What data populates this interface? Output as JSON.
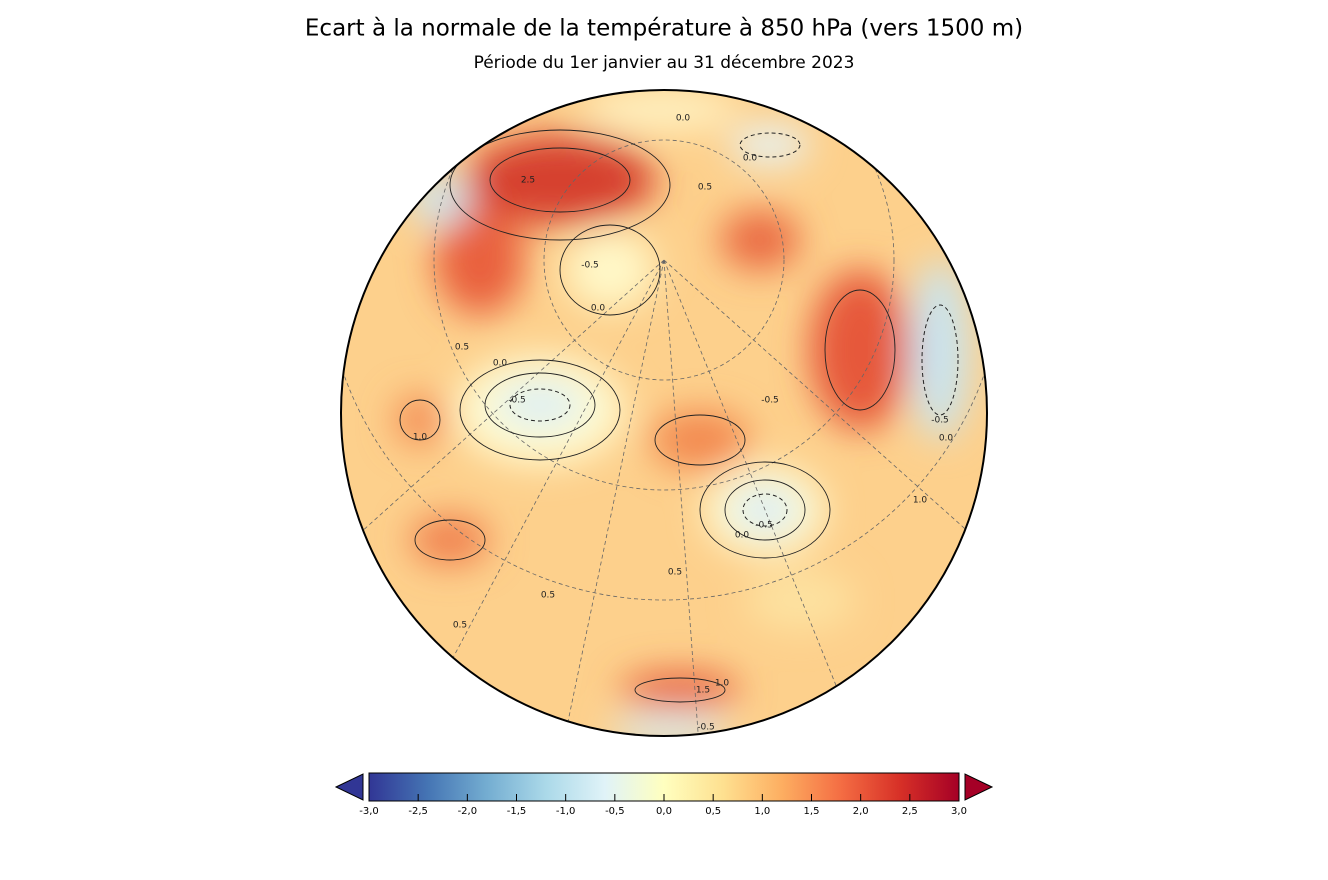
{
  "title": "Ecart à la normale de la température à 850 hPa (vers 1500 m)",
  "subtitle": "Période du 1er janvier au 31 décembre 2023",
  "map": {
    "contour_labels": [
      "0.0",
      "2.5",
      "0.0",
      "0.5",
      "-0.5",
      "0.0",
      "0.5",
      "0.0",
      "-0.5",
      "1.0",
      "-0.5",
      "0.0",
      "-0.5",
      "0.5",
      "0.5",
      "0.5",
      "1.0",
      "1.5",
      "-0.5",
      "-0.5",
      "0.0",
      "1.0"
    ]
  },
  "colorbar": {
    "lim": [
      -3,
      3
    ],
    "ticks": [
      {
        "value": -3,
        "label": "-3,0"
      },
      {
        "value": -2.5,
        "label": "-2,5"
      },
      {
        "value": -2,
        "label": "-2,0"
      },
      {
        "value": -1.5,
        "label": "-1,5"
      },
      {
        "value": -1,
        "label": "-1,0"
      },
      {
        "value": -0.5,
        "label": "-0,5"
      },
      {
        "value": 0,
        "label": "0,0"
      },
      {
        "value": 0.5,
        "label": "0,5"
      },
      {
        "value": 1,
        "label": "1,0"
      },
      {
        "value": 1.5,
        "label": "1,5"
      },
      {
        "value": 2,
        "label": "2,0"
      },
      {
        "value": 2.5,
        "label": "2,5"
      },
      {
        "value": 3,
        "label": "3,0"
      }
    ],
    "colors": [
      "#313695",
      "#4575b4",
      "#74add1",
      "#abd9e9",
      "#e0f3f8",
      "#ffffbf",
      "#fee090",
      "#fdae61",
      "#f46d43",
      "#d73027",
      "#a50026"
    ]
  }
}
